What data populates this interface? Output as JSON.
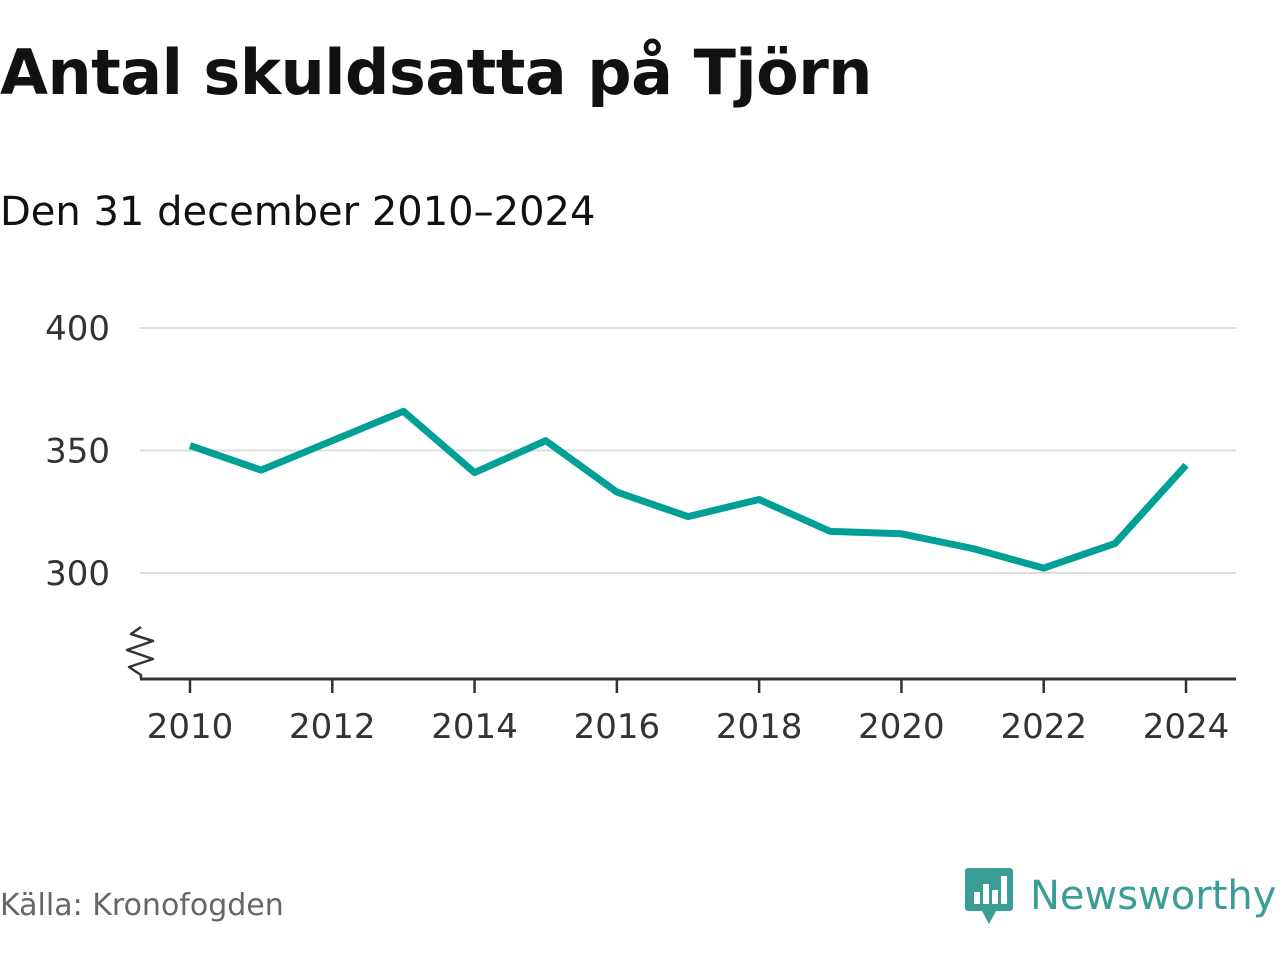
{
  "chart_data": {
    "type": "line",
    "title": "Antal skuldsatta på Tjörn",
    "subtitle": "Den 31 december 2010–2024",
    "xlabel": "",
    "ylabel": "",
    "x": [
      2010,
      2011,
      2012,
      2013,
      2014,
      2015,
      2016,
      2017,
      2018,
      2019,
      2020,
      2021,
      2022,
      2023,
      2024
    ],
    "series": [
      {
        "name": "Antal skuldsatta",
        "values": [
          352,
          342,
          354,
          366,
          341,
          354,
          333,
          323,
          330,
          317,
          316,
          310,
          302,
          312,
          344
        ],
        "color": "#00a096"
      }
    ],
    "ylim": [
      300,
      400
    ],
    "yticks": [
      "300",
      "350",
      "400"
    ],
    "xticks": [
      "2010",
      "2012",
      "2014",
      "2016",
      "2018",
      "2020",
      "2022",
      "2024"
    ],
    "grid": true,
    "axis_break": true
  },
  "source": "Källa: Kronofogden",
  "brand": {
    "name": "Newsworthy",
    "color": "#3a9e97",
    "icon": "chat-bar-chart-icon"
  },
  "colors": {
    "grid": "#dddddd",
    "axis": "#333333",
    "line": "#00a096"
  }
}
